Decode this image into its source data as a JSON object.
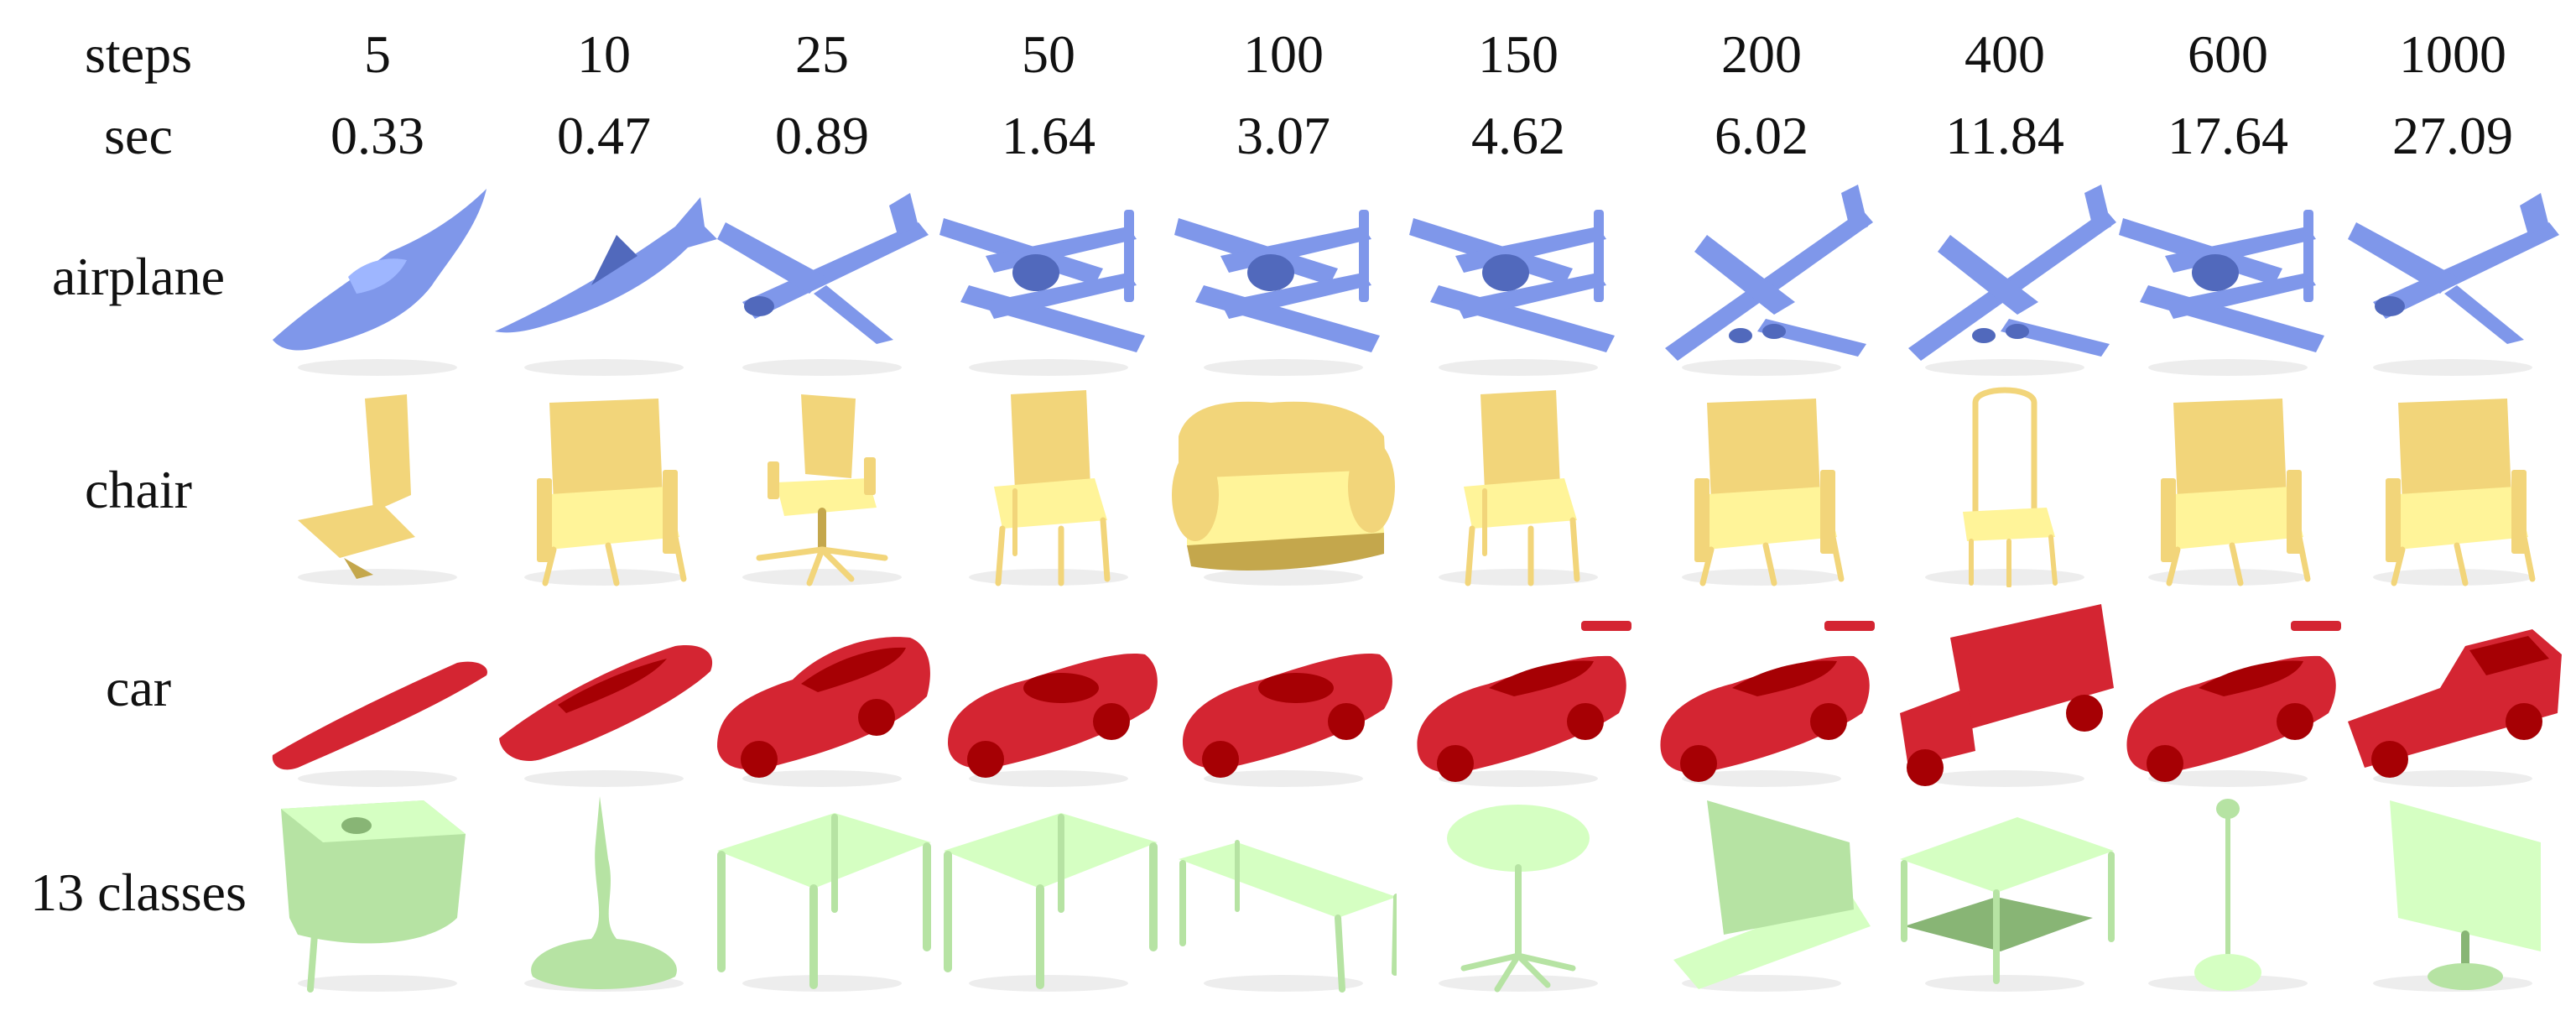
{
  "header": {
    "steps_label": "steps",
    "sec_label": "sec",
    "columns": [
      {
        "steps": "5",
        "sec": "0.33"
      },
      {
        "steps": "10",
        "sec": "0.47"
      },
      {
        "steps": "25",
        "sec": "0.89"
      },
      {
        "steps": "50",
        "sec": "1.64"
      },
      {
        "steps": "100",
        "sec": "3.07"
      },
      {
        "steps": "150",
        "sec": "4.62"
      },
      {
        "steps": "200",
        "sec": "6.02"
      },
      {
        "steps": "400",
        "sec": "11.84"
      },
      {
        "steps": "600",
        "sec": "17.64"
      },
      {
        "steps": "1000",
        "sec": "27.09"
      }
    ]
  },
  "rows": [
    {
      "label": "airplane",
      "color": "#7f97ea",
      "items": [
        "stingray-airplane",
        "fighter-jet",
        "propeller-airplane",
        "twin-boom-airplane",
        "twin-boom-airplane",
        "twin-boom-airplane",
        "airliner",
        "airliner",
        "twin-boom-airplane",
        "propeller-airplane"
      ]
    },
    {
      "label": "chair",
      "color": "#f2d57a",
      "items": [
        "armless-chair",
        "armchair",
        "office-chair",
        "dining-chair",
        "sofa",
        "dining-chair",
        "armchair",
        "wire-chair",
        "armchair",
        "armchair"
      ]
    },
    {
      "label": "car",
      "color": "#d42532",
      "items": [
        "flat-car",
        "sleek-car",
        "sedan",
        "convertible",
        "convertible",
        "sports-car",
        "sports-car",
        "box-truck",
        "sports-car",
        "pickup-truck"
      ]
    },
    {
      "label": "13 classes",
      "color": "#b6e3a3",
      "items": [
        "cabinet",
        "lamp-blob",
        "table",
        "table",
        "bench",
        "round-table",
        "bench-panel",
        "coffee-table",
        "floor-lamp",
        "monitor"
      ]
    }
  ]
}
